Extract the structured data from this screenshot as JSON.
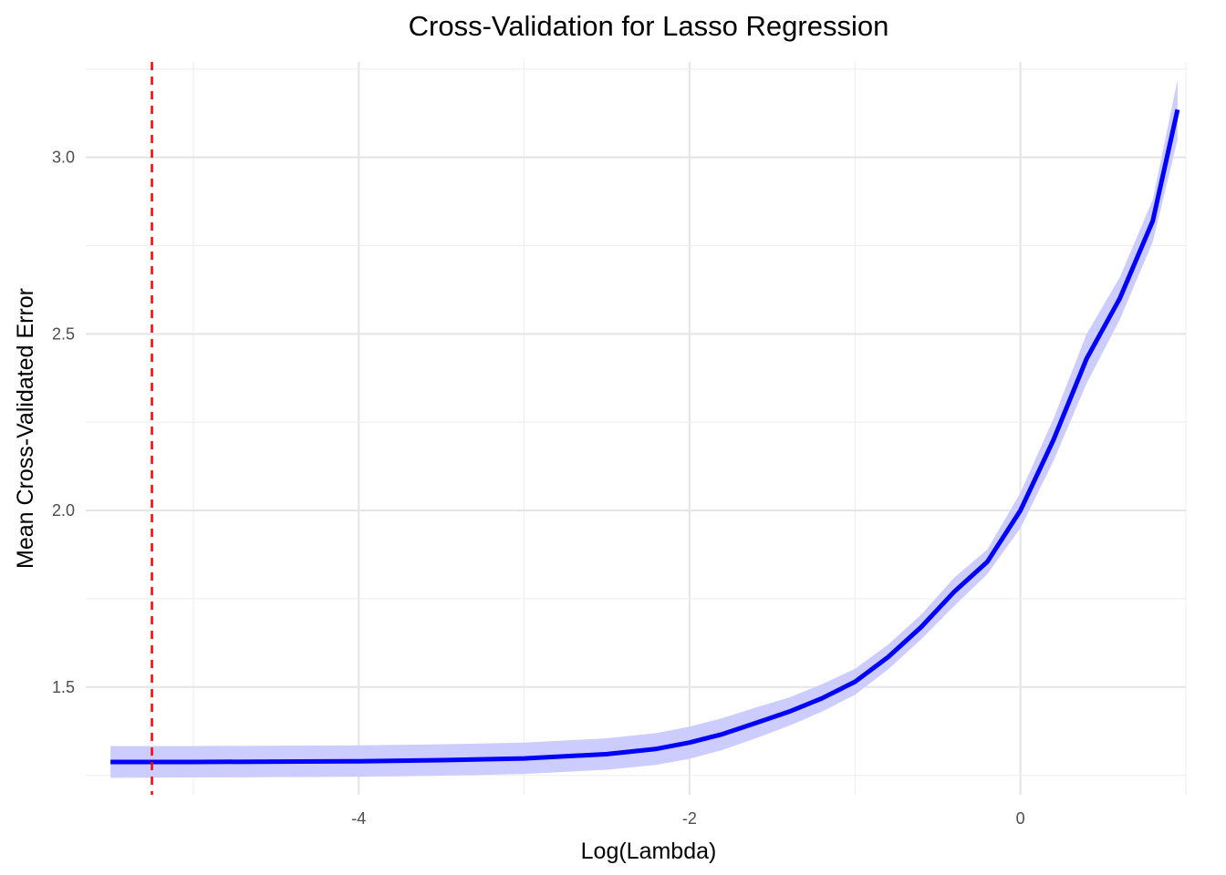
{
  "chart_data": {
    "type": "line",
    "title": "Cross-Validation for Lasso Regression",
    "xlabel": "Log(Lambda)",
    "ylabel": "Mean Cross-Validated Error",
    "xlim": [
      -5.65,
      1.0
    ],
    "ylim": [
      1.195,
      3.27
    ],
    "x_ticks": [
      -4,
      -2,
      0
    ],
    "x_tick_labels": [
      "-4",
      "-2",
      "0"
    ],
    "y_ticks": [
      1.5,
      2.0,
      2.5,
      3.0
    ],
    "y_tick_labels": [
      "1.5",
      "2.0",
      "2.5",
      "3.0"
    ],
    "grid": true,
    "legend": "none",
    "series": [
      {
        "color": "#0000ff",
        "band_color": "#ccccff",
        "x": [
          -5.5,
          -5.0,
          -4.5,
          -4.0,
          -3.5,
          -3.0,
          -2.5,
          -2.2,
          -2.0,
          -1.8,
          -1.6,
          -1.4,
          -1.2,
          -1.0,
          -0.8,
          -0.6,
          -0.4,
          -0.2,
          0.0,
          0.2,
          0.4,
          0.6,
          0.8,
          0.95
        ],
        "y": [
          1.288,
          1.288,
          1.289,
          1.29,
          1.293,
          1.298,
          1.31,
          1.325,
          1.343,
          1.367,
          1.398,
          1.43,
          1.468,
          1.515,
          1.585,
          1.67,
          1.77,
          1.855,
          2.0,
          2.2,
          2.43,
          2.6,
          2.82,
          3.135
        ],
        "lower": [
          1.243,
          1.244,
          1.245,
          1.246,
          1.249,
          1.254,
          1.266,
          1.28,
          1.297,
          1.322,
          1.355,
          1.39,
          1.43,
          1.478,
          1.55,
          1.635,
          1.73,
          1.82,
          1.95,
          2.14,
          2.36,
          2.54,
          2.76,
          3.05
        ],
        "upper": [
          1.333,
          1.333,
          1.334,
          1.335,
          1.338,
          1.343,
          1.355,
          1.37,
          1.388,
          1.412,
          1.442,
          1.47,
          1.508,
          1.552,
          1.62,
          1.705,
          1.81,
          1.89,
          2.05,
          2.26,
          2.5,
          2.66,
          2.88,
          3.22
        ]
      }
    ],
    "vline": {
      "x": -5.25,
      "color": "#ff0000",
      "style": "dashed"
    }
  }
}
